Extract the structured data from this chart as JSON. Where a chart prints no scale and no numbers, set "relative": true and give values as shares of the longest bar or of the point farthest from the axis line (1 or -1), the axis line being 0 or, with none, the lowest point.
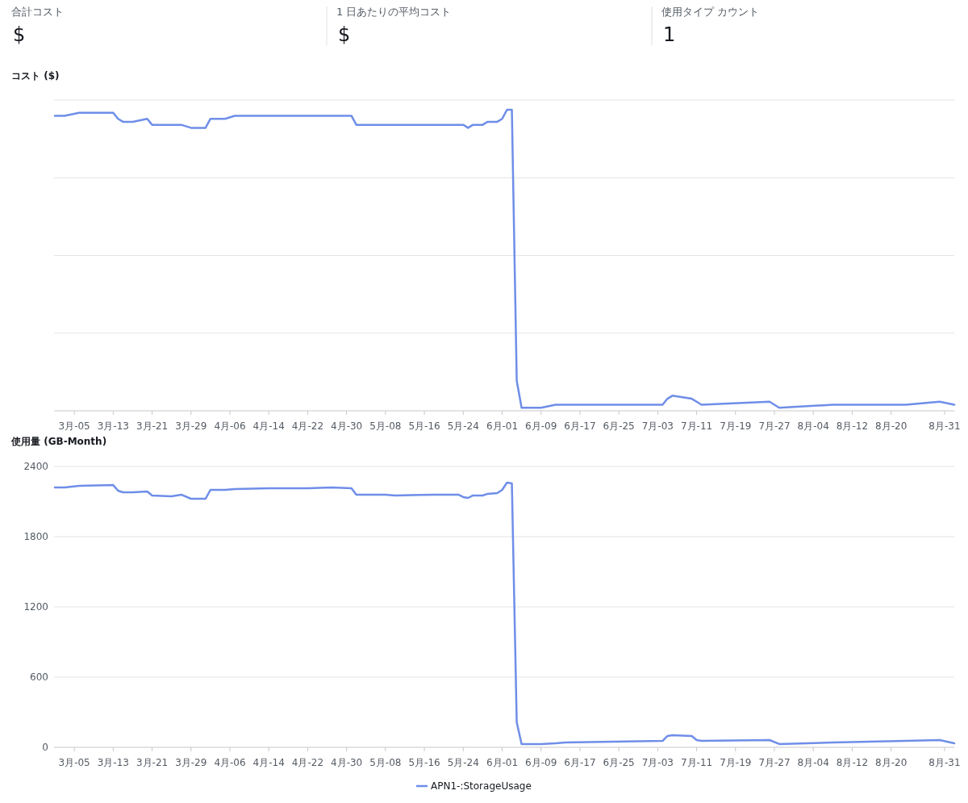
{
  "chart_data": [
    {
      "type": "other",
      "annotations": [
        "合計コスト",
        "$",
        "1 日あたりの平均コスト",
        "$",
        "使用タイプ カウント",
        "1"
      ]
    },
    {
      "type": "line",
      "title": "コスト ($)",
      "relative": true,
      "grid": "y",
      "xlim": [
        "--02-28",
        "--09-02"
      ],
      "x": [
        "--03-01",
        "--03-03",
        "--03-06",
        "--03-13",
        "--03-14",
        "--03-15",
        "--03-17",
        "--03-20",
        "--03-21",
        "--03-25",
        "--03-27",
        "--03-29",
        "--04-01",
        "--04-02",
        "--04-05",
        "--04-07",
        "--04-14",
        "--04-22",
        "--04-27",
        "--05-01",
        "--05-02",
        "--05-08",
        "--05-10",
        "--05-18",
        "--05-23",
        "--05-24",
        "--05-25",
        "--05-26",
        "--05-28",
        "--05-29",
        "--05-31",
        "--06-01",
        "--06-02",
        "--06-03",
        "--06-04",
        "--06-05",
        "--06-09",
        "--06-12",
        "--06-14",
        "--06-24",
        "--07-04",
        "--07-05",
        "--07-06",
        "--07-10",
        "--07-11",
        "--07-12",
        "--07-26",
        "--07-28",
        "--08-08",
        "--08-23",
        "--08-30",
        "--09-02"
      ],
      "xticks": [
        {
          "value": "--03-05",
          "label": "3月-05"
        },
        {
          "value": "--03-13",
          "label": "3月-13"
        },
        {
          "value": "--03-21",
          "label": "3月-21"
        },
        {
          "value": "--03-29",
          "label": "3月-29"
        },
        {
          "value": "--04-06",
          "label": "4月-06"
        },
        {
          "value": "--04-14",
          "label": "4月-14"
        },
        {
          "value": "--04-22",
          "label": "4月-22"
        },
        {
          "value": "--04-30",
          "label": "4月-30"
        },
        {
          "value": "--05-08",
          "label": "5月-08"
        },
        {
          "value": "--05-16",
          "label": "5月-16"
        },
        {
          "value": "--05-24",
          "label": "5月-24"
        },
        {
          "value": "--06-01",
          "label": "6月-01"
        },
        {
          "value": "--06-09",
          "label": "6月-09"
        },
        {
          "value": "--06-17",
          "label": "6月-17"
        },
        {
          "value": "--06-25",
          "label": "6月-25"
        },
        {
          "value": "--07-03",
          "label": "7月-03"
        },
        {
          "value": "--07-11",
          "label": "7月-11"
        },
        {
          "value": "--07-19",
          "label": "7月-19"
        },
        {
          "value": "--07-27",
          "label": "7月-27"
        },
        {
          "value": "--08-04",
          "label": "8月-04"
        },
        {
          "value": "--08-12",
          "label": "8月-12"
        },
        {
          "value": "--08-20",
          "label": "8月-20"
        },
        {
          "value": "--08-31",
          "label": "8月-31"
        }
      ],
      "series": [
        {
          "color": "#6f8ee8",
          "values": [
            0.98,
            0.98,
            0.99,
            0.99,
            0.97,
            0.96,
            0.96,
            0.97,
            0.95,
            0.95,
            0.95,
            0.94,
            0.94,
            0.97,
            0.97,
            0.98,
            0.98,
            0.98,
            0.98,
            0.98,
            0.95,
            0.95,
            0.95,
            0.95,
            0.95,
            0.95,
            0.94,
            0.95,
            0.95,
            0.96,
            0.96,
            0.97,
            1,
            1,
            0.1,
            0.01,
            0.01,
            0.02,
            0.02,
            0.02,
            0.02,
            0.04,
            0.05,
            0.04,
            0.03,
            0.02,
            0.03,
            0.01,
            0.02,
            0.02,
            0.03,
            0.02
          ]
        }
      ]
    },
    {
      "type": "line",
      "title": "使用量 (GB-Month)",
      "grid": "y",
      "legend": "bottom",
      "xlim": [
        "--02-28",
        "--09-02"
      ],
      "ylim": [
        0,
        2400
      ],
      "yticks": [
        0,
        600,
        1200,
        1800,
        2400
      ],
      "x": [
        "--03-01",
        "--03-03",
        "--03-06",
        "--03-13",
        "--03-14",
        "--03-15",
        "--03-17",
        "--03-20",
        "--03-21",
        "--03-25",
        "--03-27",
        "--03-29",
        "--04-01",
        "--04-02",
        "--04-05",
        "--04-07",
        "--04-14",
        "--04-22",
        "--04-27",
        "--05-01",
        "--05-02",
        "--05-08",
        "--05-10",
        "--05-18",
        "--05-23",
        "--05-24",
        "--05-25",
        "--05-26",
        "--05-28",
        "--05-29",
        "--05-31",
        "--06-01",
        "--06-02",
        "--06-03",
        "--06-04",
        "--06-05",
        "--06-09",
        "--06-12",
        "--06-14",
        "--06-24",
        "--07-04",
        "--07-05",
        "--07-06",
        "--07-10",
        "--07-11",
        "--07-12",
        "--07-26",
        "--07-28",
        "--08-08",
        "--08-23",
        "--08-30",
        "--09-02"
      ],
      "xticks": [
        {
          "value": "--03-05",
          "label": "3月-05"
        },
        {
          "value": "--03-13",
          "label": "3月-13"
        },
        {
          "value": "--03-21",
          "label": "3月-21"
        },
        {
          "value": "--03-29",
          "label": "3月-29"
        },
        {
          "value": "--04-06",
          "label": "4月-06"
        },
        {
          "value": "--04-14",
          "label": "4月-14"
        },
        {
          "value": "--04-22",
          "label": "4月-22"
        },
        {
          "value": "--04-30",
          "label": "4月-30"
        },
        {
          "value": "--05-08",
          "label": "5月-08"
        },
        {
          "value": "--05-16",
          "label": "5月-16"
        },
        {
          "value": "--05-24",
          "label": "5月-24"
        },
        {
          "value": "--06-01",
          "label": "6月-01"
        },
        {
          "value": "--06-09",
          "label": "6月-09"
        },
        {
          "value": "--06-17",
          "label": "6月-17"
        },
        {
          "value": "--06-25",
          "label": "6月-25"
        },
        {
          "value": "--07-03",
          "label": "7月-03"
        },
        {
          "value": "--07-11",
          "label": "7月-11"
        },
        {
          "value": "--07-19",
          "label": "7月-19"
        },
        {
          "value": "--07-27",
          "label": "7月-27"
        },
        {
          "value": "--08-04",
          "label": "8月-04"
        },
        {
          "value": "--08-12",
          "label": "8月-12"
        },
        {
          "value": "--08-20",
          "label": "8月-20"
        },
        {
          "value": "--08-31",
          "label": "8月-31"
        }
      ],
      "series": [
        {
          "name": "APN1-:StorageUsage",
          "color": "#6f8ee8",
          "values": [
            2221,
            2221,
            2234,
            2241,
            2193,
            2179,
            2179,
            2186,
            2152,
            2145,
            2159,
            2124,
            2124,
            2200,
            2200,
            2207,
            2214,
            2214,
            2221,
            2214,
            2159,
            2159,
            2152,
            2159,
            2159,
            2138,
            2131,
            2152,
            2152,
            2166,
            2172,
            2200,
            2262,
            2255,
            214,
            28,
            28,
            34,
            41,
            48,
            55,
            97,
            103,
            97,
            62,
            55,
            62,
            28,
            41,
            55,
            62,
            34
          ]
        }
      ]
    }
  ]
}
